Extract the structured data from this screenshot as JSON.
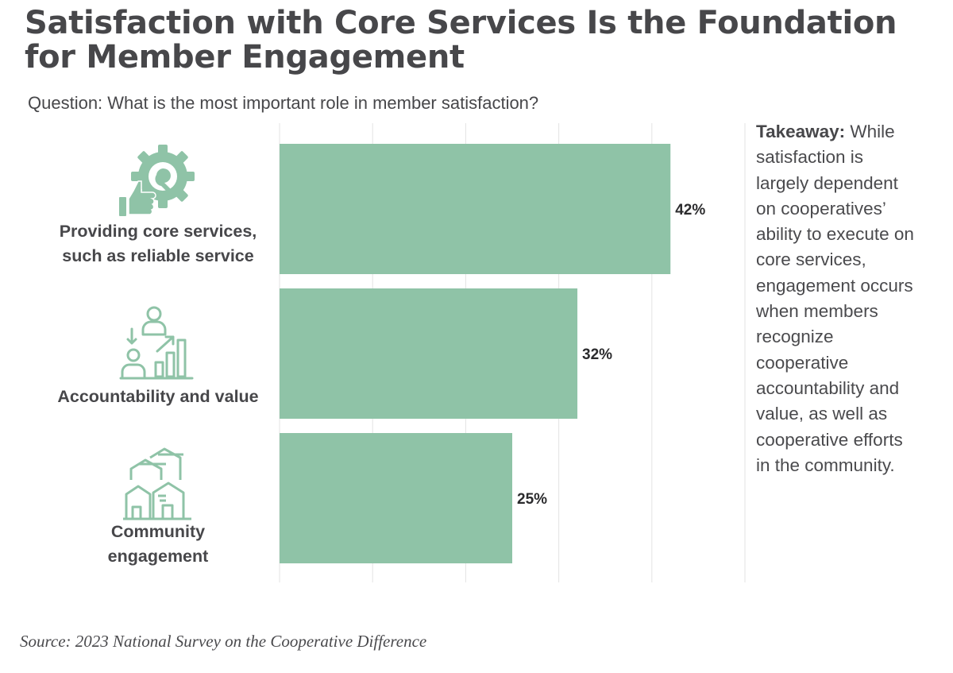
{
  "title": "Satisfaction with Core Services Is the Foundation for Member Engagement",
  "subtitle": "Question: What is the most important role in member satisfaction?",
  "takeaway": {
    "label": "Takeaway:",
    "text": "While satisfaction is largely dependent on cooperatives’ ability to execute on core services, engagement occurs when members recognize cooperative accountability and value, as well as cooperative efforts in the community."
  },
  "source": "Source: 2023 National Survey on the Cooperative Difference",
  "categories": [
    {
      "label_line1": "Providing core services,",
      "label_line2": "such as reliable service",
      "icon": "gear-thumbs-up-icon"
    },
    {
      "label_line1": "Accountability and value",
      "label_line2": "",
      "icon": "person-growth-chart-icon"
    },
    {
      "label_line1": "Community",
      "label_line2": "engagement",
      "icon": "houses-icon"
    }
  ],
  "colors": {
    "bar": "#8fc3a7",
    "icon": "#8fc3a7",
    "grid": "#e3e3e3",
    "text": "#47474a"
  },
  "chart_data": {
    "type": "bar",
    "orientation": "horizontal",
    "title": "Satisfaction with Core Services Is the Foundation for Member Engagement",
    "subtitle": "Question: What is the most important role in member satisfaction?",
    "categories": [
      "Providing core services, such as reliable service",
      "Accountability and value",
      "Community engagement"
    ],
    "values": [
      42,
      32,
      25
    ],
    "value_labels": [
      "42%",
      "32%",
      "25%"
    ],
    "unit": "%",
    "xlim": [
      0,
      50
    ],
    "grid": true,
    "xlabel": "",
    "ylabel": ""
  }
}
